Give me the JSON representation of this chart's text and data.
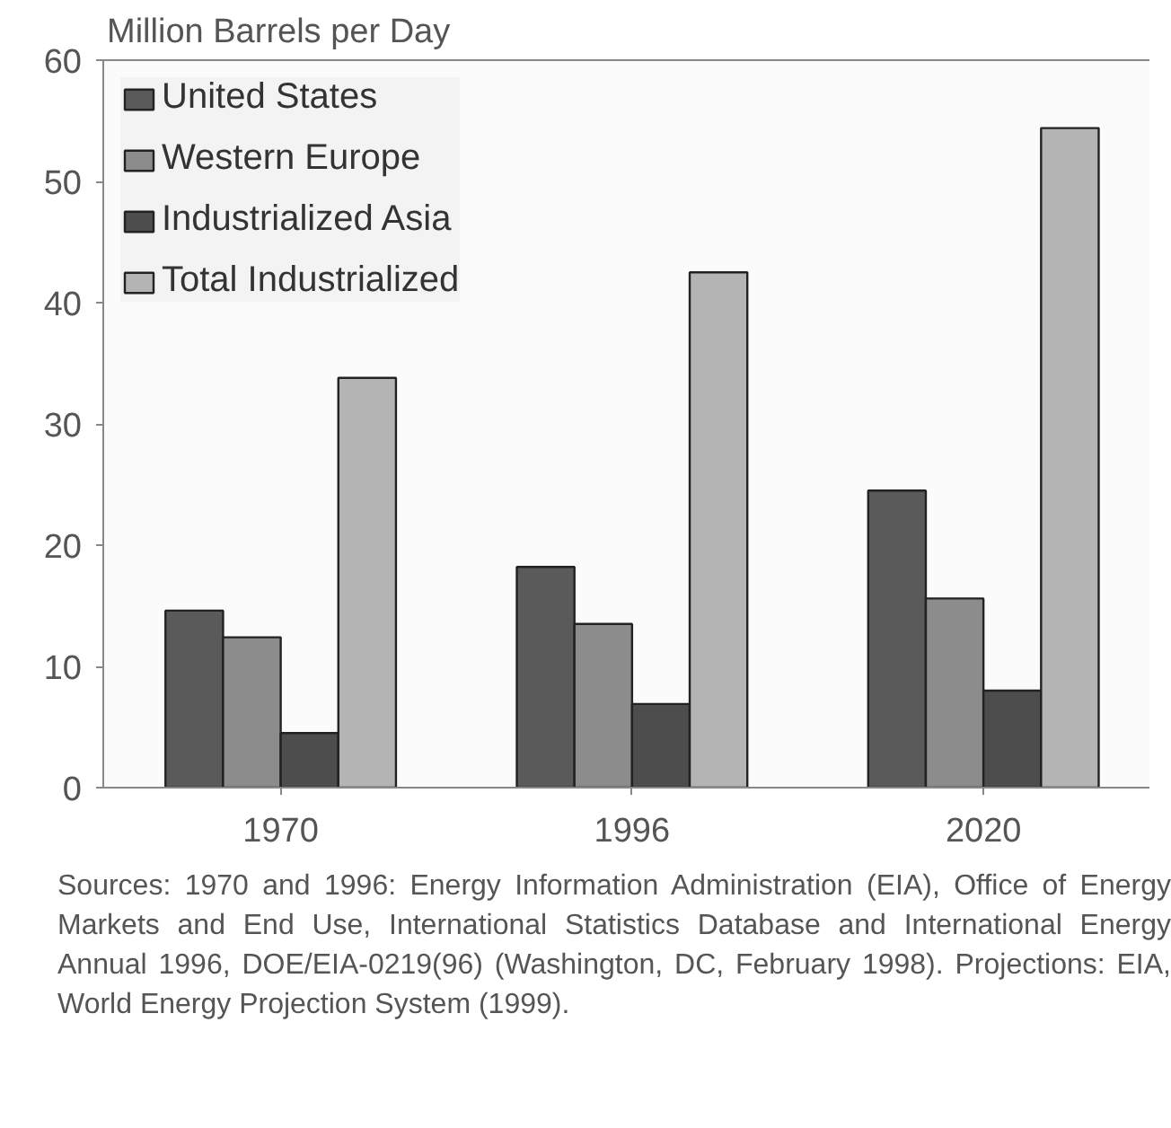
{
  "chart_data": {
    "type": "bar",
    "ylabel": "Million Barrels per Day",
    "categories": [
      "1970",
      "1996",
      "2020"
    ],
    "series": [
      {
        "name": "United States",
        "color": "#5a5a5a",
        "values": [
          14.6,
          18.2,
          24.5
        ]
      },
      {
        "name": "Western Europe",
        "color": "#8c8c8c",
        "values": [
          12.4,
          13.5,
          15.6
        ]
      },
      {
        "name": "Industrialized Asia",
        "color": "#4d4d4d",
        "values": [
          4.5,
          6.9,
          8.0
        ]
      },
      {
        "name": "Total Industrialized",
        "color": "#b4b4b4",
        "values": [
          33.8,
          42.5,
          54.4
        ]
      }
    ],
    "ylim": [
      0,
      60
    ],
    "yticks": [
      0,
      10,
      20,
      30,
      40,
      50,
      60
    ],
    "legend": "top left",
    "annotations": [
      "Sources: 1970 and 1996: Energy Information Administration (EIA), Office of Energy Markets and End Use, International Statistics Database and International Energy Annual 1996, DOE/EIA-0219(96) (Washington, DC, February 1998). Projections: EIA, World Energy Projection System (1999)."
    ]
  }
}
